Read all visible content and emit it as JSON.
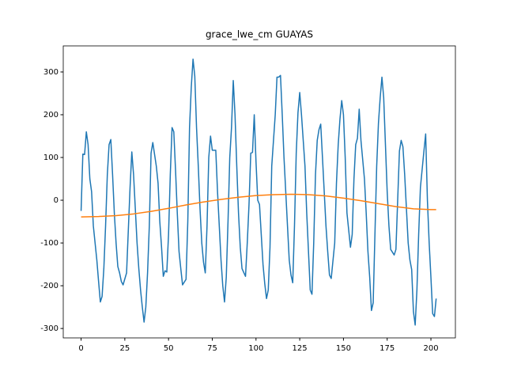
{
  "chart_data": {
    "type": "line",
    "title": "grace_lwe_cm GUAYAS",
    "xlim": [
      -10.2,
      214
    ],
    "xticks": [
      0,
      25,
      50,
      75,
      100,
      125,
      150,
      175,
      200
    ],
    "ylim": [
      -322,
      361
    ],
    "yticks": [
      -300,
      -200,
      -100,
      0,
      100,
      200,
      300
    ],
    "series": [
      {
        "color": "#1f77b4",
        "x": [
          0,
          1,
          2,
          3,
          4,
          5,
          6,
          7,
          9,
          10,
          11,
          12,
          13,
          14,
          15,
          16,
          17,
          18,
          19,
          20,
          21,
          22,
          23,
          24,
          26,
          27,
          28,
          29,
          30,
          31,
          32,
          33,
          34,
          35,
          36,
          37,
          38,
          39,
          40,
          41,
          43,
          44,
          45,
          46,
          47,
          48,
          49,
          50,
          51,
          52,
          53,
          54,
          55,
          56,
          57,
          58,
          60,
          61,
          62,
          63,
          64,
          65,
          66,
          67,
          68,
          69,
          70,
          71,
          72,
          73,
          74,
          75,
          77,
          78,
          79,
          80,
          81,
          82,
          83,
          84,
          85,
          86,
          87,
          88,
          89,
          90,
          91,
          92,
          94,
          95,
          96,
          97,
          98,
          99,
          100,
          101,
          102,
          103,
          104,
          105,
          106,
          107,
          108,
          109,
          111,
          112,
          113,
          114,
          115,
          116,
          117,
          118,
          119,
          120,
          121,
          122,
          123,
          124,
          125,
          126,
          128,
          129,
          130,
          131,
          132,
          133,
          134,
          135,
          136,
          137,
          138,
          139,
          140,
          141,
          142,
          143,
          145,
          146,
          147,
          148,
          149,
          150,
          151,
          152,
          153,
          154,
          155,
          156,
          157,
          158,
          159,
          160,
          162,
          163,
          164,
          165,
          166,
          167,
          168,
          169,
          170,
          171,
          172,
          173,
          174,
          175,
          176,
          177,
          179,
          180,
          181,
          182,
          183,
          184,
          185,
          186,
          187,
          188,
          189,
          190,
          191,
          192,
          193,
          194,
          196,
          197,
          198,
          199,
          200,
          201,
          202,
          203
        ],
        "values": [
          -25,
          108,
          107,
          160,
          130,
          50,
          20,
          -60,
          -140,
          -190,
          -238,
          -225,
          -160,
          -60,
          60,
          130,
          142,
          60,
          -30,
          -100,
          -155,
          -170,
          -190,
          -198,
          -170,
          -70,
          30,
          113,
          60,
          -20,
          -100,
          -160,
          -210,
          -250,
          -285,
          -250,
          -170,
          -60,
          110,
          135,
          80,
          40,
          -50,
          -110,
          -178,
          -165,
          -168,
          -80,
          60,
          170,
          160,
          70,
          -30,
          -120,
          -160,
          -198,
          -185,
          -50,
          170,
          265,
          330,
          290,
          170,
          80,
          -20,
          -100,
          -145,
          -170,
          -60,
          100,
          150,
          117,
          117,
          20,
          -60,
          -140,
          -200,
          -238,
          -180,
          -50,
          100,
          170,
          280,
          200,
          80,
          -30,
          -110,
          -160,
          -178,
          -100,
          -10,
          110,
          112,
          200,
          90,
          0,
          -10,
          -80,
          -150,
          -195,
          -230,
          -210,
          -110,
          80,
          200,
          288,
          288,
          292,
          200,
          100,
          20,
          -60,
          -140,
          -175,
          -193,
          -60,
          110,
          205,
          252,
          200,
          80,
          -30,
          -120,
          -210,
          -220,
          -100,
          60,
          140,
          165,
          178,
          100,
          20,
          -60,
          -120,
          -175,
          -183,
          -100,
          40,
          130,
          190,
          233,
          200,
          100,
          -30,
          -70,
          -110,
          -80,
          50,
          130,
          145,
          213,
          140,
          50,
          -30,
          -120,
          -180,
          -258,
          -240,
          -80,
          80,
          180,
          240,
          288,
          240,
          130,
          20,
          -60,
          -115,
          -128,
          -115,
          0,
          115,
          140,
          125,
          60,
          -20,
          -100,
          -140,
          -162,
          -260,
          -292,
          -210,
          -80,
          30,
          115,
          155,
          0,
          -100,
          -180,
          -265,
          -272,
          -230
        ]
      },
      {
        "color": "#ff7f0e",
        "x": [
          0,
          10,
          20,
          30,
          40,
          50,
          60,
          70,
          80,
          90,
          100,
          110,
          120,
          130,
          140,
          150,
          160,
          170,
          180,
          190,
          200,
          203
        ],
        "values": [
          -39,
          -38,
          -36,
          -32,
          -26,
          -19,
          -11,
          -4,
          2,
          7,
          11,
          13,
          14,
          13,
          10,
          5,
          -1,
          -8,
          -15,
          -20,
          -22,
          -22
        ]
      }
    ]
  }
}
